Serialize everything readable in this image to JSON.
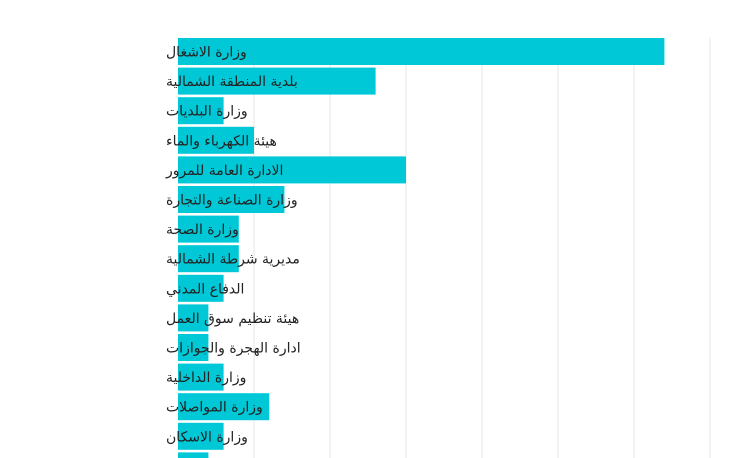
{
  "chart_data": {
    "type": "bar",
    "orientation": "horizontal",
    "title": "",
    "xlabel": "",
    "ylabel": "",
    "grid": true,
    "xlim": [
      0,
      35
    ],
    "bar_color": "#00c8d7",
    "grid_color": "#e6e6e6",
    "categories": [
      "وزارة الاشغال",
      "بلدية المنطقة الشمالية",
      "وزارة البلديات",
      "هيئة الكهرباء والماء",
      "الادارة العامة للمرور",
      "وزارة الصناعة والتجارة",
      "وزارة الصحة",
      "مديرية شرطة الشمالية",
      "الدفاع المدني",
      "هيئة تنظيم سوق العمل",
      "ادارة الهجرة والجوازات",
      "وزارة الداخلية",
      "وزارة المواصلات",
      "وزارة الاسكان",
      ""
    ],
    "values": [
      32,
      13,
      3,
      5,
      15,
      7,
      4,
      4,
      3,
      2,
      2,
      3,
      6,
      3,
      2
    ]
  }
}
